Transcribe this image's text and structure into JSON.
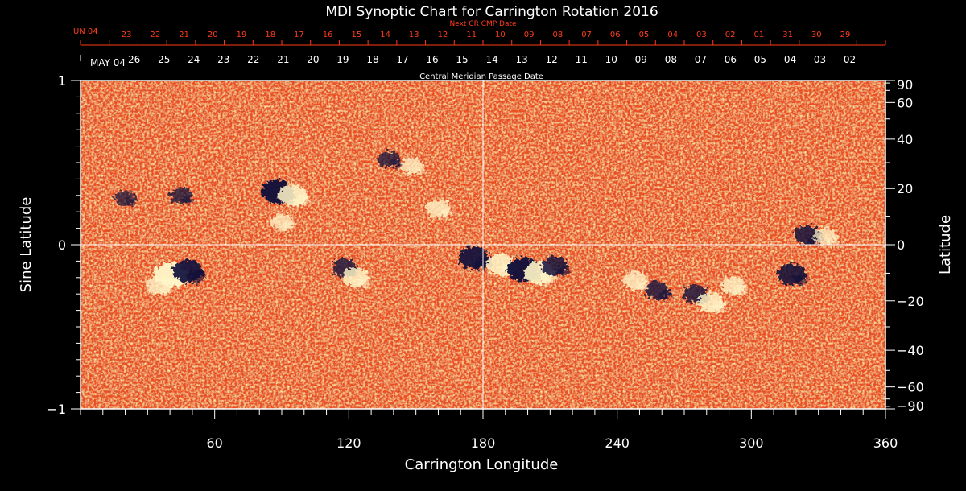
{
  "chart_data": {
    "type": "heatmap",
    "title": "MDI Synoptic Chart for Carrington Rotation 2016",
    "xlabel": "Carrington Longitude",
    "ylabel_left": "Sine Latitude",
    "ylabel_right": "Latitude",
    "xlim": [
      0,
      360
    ],
    "ylim": [
      -1,
      1
    ],
    "x_ticks": [
      60,
      120,
      180,
      240,
      300,
      360
    ],
    "y_ticks_left": [
      1,
      0,
      -1
    ],
    "y_ticks_left_labels": [
      "1",
      "0",
      "−1"
    ],
    "y_ticks_right": [
      90,
      60,
      40,
      20,
      0,
      -20,
      -40,
      -60,
      -90
    ],
    "y_ticks_right_labels": [
      "90",
      "60",
      "40",
      "20",
      "0",
      "−20",
      "−40",
      "−60",
      "−90"
    ],
    "cmp_axis": {
      "label": "Central Meridian Passage Date",
      "first_label": "MAY 04",
      "dates": [
        "26",
        "25",
        "24",
        "23",
        "22",
        "21",
        "20",
        "19",
        "18",
        "17",
        "16",
        "15",
        "14",
        "13",
        "12",
        "11",
        "10",
        "09",
        "08",
        "07",
        "06",
        "05",
        "04",
        "03",
        "02"
      ]
    },
    "next_cr_axis": {
      "label": "Next CR CMP Date",
      "first_label": "JUN 04",
      "dates": [
        "23",
        "22",
        "21",
        "20",
        "19",
        "18",
        "17",
        "16",
        "15",
        "14",
        "13",
        "12",
        "11",
        "10",
        "09",
        "08",
        "07",
        "06",
        "05",
        "04",
        "03",
        "02",
        "01",
        "31",
        "30",
        "29"
      ]
    },
    "crosshair": {
      "longitude": 180,
      "sine_latitude": 0
    },
    "background_color": "#f0501a",
    "positive_color": "#fff6c8",
    "negative_color": "#0b0b3a",
    "regions": [
      {
        "lon": 40,
        "sinlat": -0.18,
        "polarity": "positive",
        "strength": 1.0
      },
      {
        "lon": 48,
        "sinlat": -0.16,
        "polarity": "negative",
        "strength": 0.9
      },
      {
        "lon": 35,
        "sinlat": -0.25,
        "polarity": "positive",
        "strength": 0.6
      },
      {
        "lon": 88,
        "sinlat": 0.32,
        "polarity": "negative",
        "strength": 1.0
      },
      {
        "lon": 95,
        "sinlat": 0.3,
        "polarity": "positive",
        "strength": 0.8
      },
      {
        "lon": 90,
        "sinlat": 0.14,
        "polarity": "positive",
        "strength": 0.5
      },
      {
        "lon": 118,
        "sinlat": -0.14,
        "polarity": "negative",
        "strength": 0.6
      },
      {
        "lon": 123,
        "sinlat": -0.2,
        "polarity": "positive",
        "strength": 0.7
      },
      {
        "lon": 138,
        "sinlat": 0.52,
        "polarity": "negative",
        "strength": 0.5
      },
      {
        "lon": 148,
        "sinlat": 0.48,
        "polarity": "positive",
        "strength": 0.5
      },
      {
        "lon": 160,
        "sinlat": 0.22,
        "polarity": "positive",
        "strength": 0.6
      },
      {
        "lon": 176,
        "sinlat": -0.08,
        "polarity": "negative",
        "strength": 0.9
      },
      {
        "lon": 188,
        "sinlat": -0.12,
        "polarity": "positive",
        "strength": 0.8
      },
      {
        "lon": 198,
        "sinlat": -0.15,
        "polarity": "negative",
        "strength": 1.0
      },
      {
        "lon": 205,
        "sinlat": -0.17,
        "polarity": "positive",
        "strength": 0.9
      },
      {
        "lon": 212,
        "sinlat": -0.13,
        "polarity": "negative",
        "strength": 0.7
      },
      {
        "lon": 248,
        "sinlat": -0.22,
        "polarity": "positive",
        "strength": 0.6
      },
      {
        "lon": 258,
        "sinlat": -0.28,
        "polarity": "negative",
        "strength": 0.6
      },
      {
        "lon": 275,
        "sinlat": -0.3,
        "polarity": "negative",
        "strength": 0.6
      },
      {
        "lon": 282,
        "sinlat": -0.35,
        "polarity": "positive",
        "strength": 0.7
      },
      {
        "lon": 292,
        "sinlat": -0.25,
        "polarity": "positive",
        "strength": 0.6
      },
      {
        "lon": 318,
        "sinlat": -0.18,
        "polarity": "negative",
        "strength": 0.8
      },
      {
        "lon": 325,
        "sinlat": 0.06,
        "polarity": "negative",
        "strength": 0.7
      },
      {
        "lon": 333,
        "sinlat": 0.05,
        "polarity": "positive",
        "strength": 0.5
      },
      {
        "lon": 45,
        "sinlat": 0.3,
        "polarity": "negative",
        "strength": 0.5
      },
      {
        "lon": 20,
        "sinlat": 0.28,
        "polarity": "negative",
        "strength": 0.4
      }
    ]
  }
}
